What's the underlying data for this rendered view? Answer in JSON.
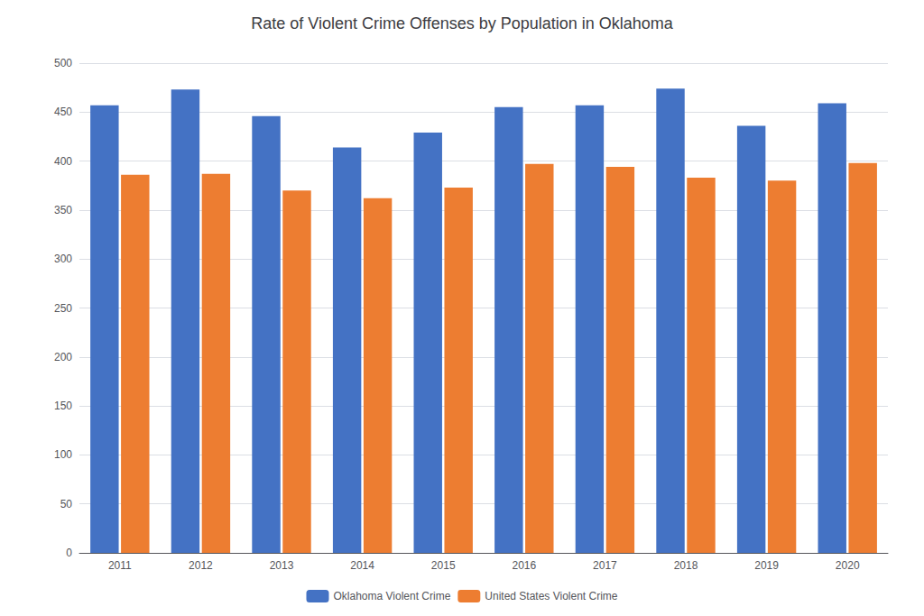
{
  "chart_data": {
    "type": "bar",
    "title": "Rate of Violent Crime Offenses by Population in Oklahoma",
    "categories": [
      "2011",
      "2012",
      "2013",
      "2014",
      "2015",
      "2016",
      "2017",
      "2018",
      "2019",
      "2020"
    ],
    "series": [
      {
        "name": "Oklahoma Violent Crime",
        "color": "#4472C4",
        "values": [
          457,
          473,
          446,
          414,
          429,
          455,
          457,
          474,
          436,
          459
        ]
      },
      {
        "name": "United States Violent Crime",
        "color": "#ED7D31",
        "values": [
          386,
          387,
          370,
          362,
          373,
          397,
          394,
          383,
          380,
          398
        ]
      }
    ],
    "ylim": [
      0,
      500
    ],
    "yticks": [
      0,
      50,
      100,
      150,
      200,
      250,
      300,
      350,
      400,
      450,
      500
    ],
    "grid": true,
    "legend": "bottom"
  }
}
